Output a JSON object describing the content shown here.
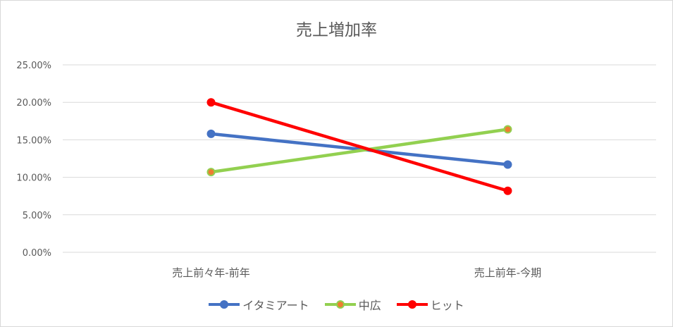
{
  "chart_data": {
    "type": "line",
    "title": "売上増加率",
    "categories": [
      "売上前々年-前年",
      "売上前年-今期"
    ],
    "y_ticks": [
      "0.00%",
      "5.00%",
      "10.00%",
      "15.00%",
      "20.00%",
      "25.00%"
    ],
    "ylim": [
      0,
      0.25
    ],
    "grid": true,
    "legend_position": "bottom",
    "series": [
      {
        "name": "イタミアート",
        "values": [
          0.158,
          0.117
        ],
        "color": "#4472c4",
        "marker_fill": "#4472c4",
        "marker_stroke": "#4472c4"
      },
      {
        "name": "中広",
        "values": [
          0.107,
          0.164
        ],
        "color": "#92d050",
        "marker_fill": "#ed7d31",
        "marker_stroke": "#92d050"
      },
      {
        "name": "ヒット",
        "values": [
          0.2,
          0.082
        ],
        "color": "#ff0000",
        "marker_fill": "#ff0000",
        "marker_stroke": "#ff0000"
      }
    ]
  }
}
